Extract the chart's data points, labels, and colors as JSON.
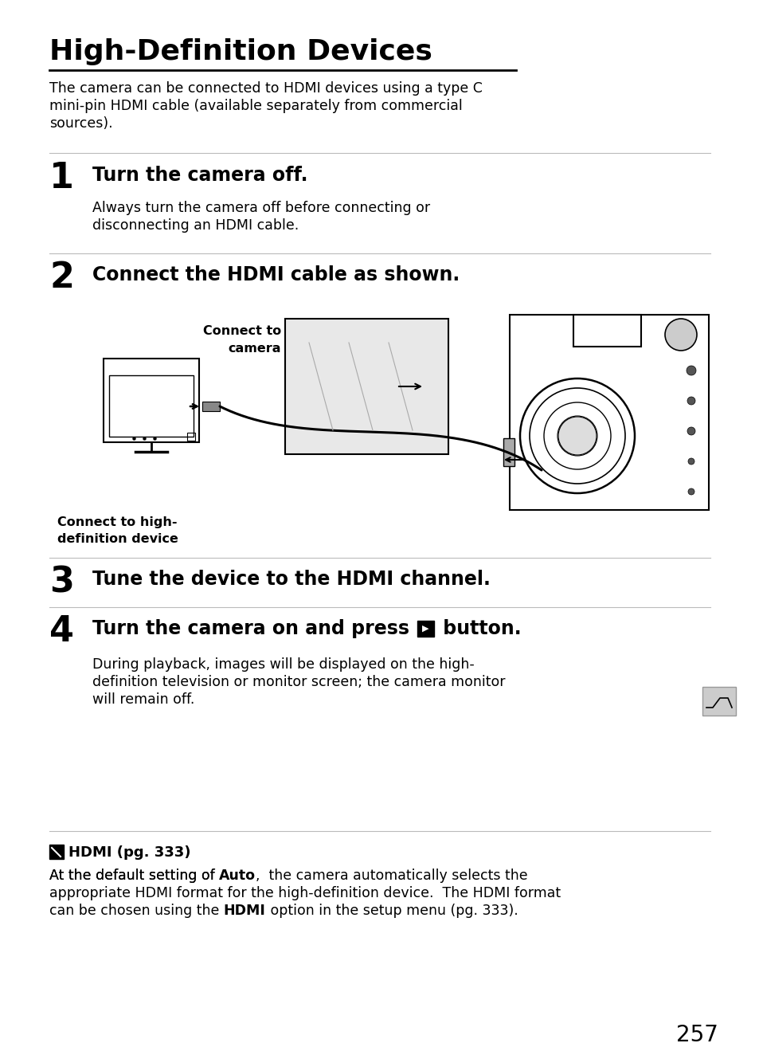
{
  "bg_color": "#ffffff",
  "title": "High-Definition Devices",
  "intro_line1": "The camera can be connected to HDMI devices using a type C",
  "intro_line2": "mini-pin HDMI cable (available separately from commercial",
  "intro_line3": "sources).",
  "step1_num": "1",
  "step1_head": "Turn the camera off.",
  "step1_body_line1": "Always turn the camera off before connecting or",
  "step1_body_line2": "disconnecting an HDMI cable.",
  "step2_num": "2",
  "step2_head": "Connect the HDMI cable as shown.",
  "step3_num": "3",
  "step3_head": "Tune the device to the HDMI channel.",
  "step4_num": "4",
  "step4_head_pre": "Turn the camera on and press ",
  "step4_head_post": " button.",
  "step4_body_line1": "During playback, images will be displayed on the high-",
  "step4_body_line2": "definition television or monitor screen; the camera monitor",
  "step4_body_line3": "will remain off.",
  "note_head": "HDMI (pg. 333)",
  "note_line1_pre": "At the default setting of ",
  "note_line1_bold": "Auto",
  "note_line1_post": ",  the camera automatically selects the",
  "note_line2": "appropriate HDMI format for the high-definition device.  The HDMI format",
  "note_line3_pre": "can be chosen using the ",
  "note_line3_bold": "HDMI",
  "note_line3_post": " option in the setup menu (pg. 333).",
  "page_num": "257",
  "label_connect_camera": "Connect to\ncamera",
  "label_connect_hd": "Connect to high-\ndefinition device",
  "divider_color": "#bbbbbb",
  "text_color": "#000000"
}
